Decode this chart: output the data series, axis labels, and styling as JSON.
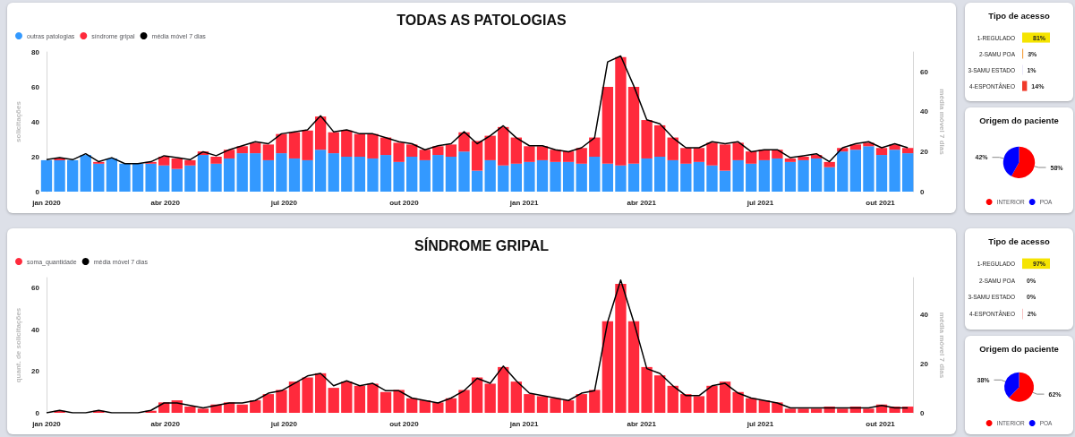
{
  "chart_data": [
    {
      "type": "bar",
      "title": "TODAS AS PATOLOGIAS",
      "ylabel": "solicitações",
      "y2label": "média móvel 7 dias",
      "stacked": true,
      "legend": "top left",
      "x": [
        "2020-01-01",
        "2020-01-11",
        "2020-01-21",
        "2020-01-31",
        "2020-02-10",
        "2020-02-20",
        "2020-03-01",
        "2020-03-11",
        "2020-03-21",
        "2020-03-31",
        "2020-04-10",
        "2020-04-20",
        "2020-04-30",
        "2020-05-10",
        "2020-05-20",
        "2020-05-30",
        "2020-06-09",
        "2020-06-19",
        "2020-06-29",
        "2020-07-09",
        "2020-07-19",
        "2020-07-29",
        "2020-08-08",
        "2020-08-18",
        "2020-08-28",
        "2020-09-07",
        "2020-09-17",
        "2020-09-27",
        "2020-10-07",
        "2020-10-17",
        "2020-10-27",
        "2020-11-06",
        "2020-11-16",
        "2020-11-26",
        "2020-12-06",
        "2020-12-16",
        "2020-12-26",
        "2021-01-05",
        "2021-01-15",
        "2021-01-25",
        "2021-02-04",
        "2021-02-14",
        "2021-02-24",
        "2021-03-06",
        "2021-03-16",
        "2021-03-26",
        "2021-04-05",
        "2021-04-15",
        "2021-04-25",
        "2021-05-05",
        "2021-05-15",
        "2021-05-25",
        "2021-06-04",
        "2021-06-14",
        "2021-06-24",
        "2021-07-04",
        "2021-07-14",
        "2021-07-24",
        "2021-08-03",
        "2021-08-13",
        "2021-08-23",
        "2021-09-02",
        "2021-09-12",
        "2021-09-22",
        "2021-10-02",
        "2021-10-12",
        "2021-10-22"
      ],
      "xlim": [
        "2020-01-01",
        "2021-10-26"
      ],
      "xticks": [
        {
          "value": "2020-01-01",
          "label": "jan 2020"
        },
        {
          "value": "2020-04-01",
          "label": "abr 2020"
        },
        {
          "value": "2020-07-01",
          "label": "jul 2020"
        },
        {
          "value": "2020-10-01",
          "label": "out 2020"
        },
        {
          "value": "2021-01-01",
          "label": "jan 2021"
        },
        {
          "value": "2021-04-01",
          "label": "abr 2021"
        },
        {
          "value": "2021-07-01",
          "label": "jul 2021"
        },
        {
          "value": "2021-10-01",
          "label": "out 2021"
        }
      ],
      "ylim": [
        0,
        80
      ],
      "yticks": [
        0,
        20,
        40,
        60,
        80
      ],
      "y2lim": [
        0,
        70
      ],
      "y2ticks": [
        0,
        20,
        40,
        60
      ],
      "series": [
        {
          "name": "outras patologias",
          "color": "#3399ff",
          "values": [
            18,
            18,
            18,
            21,
            16,
            19,
            16,
            16,
            16,
            15,
            13,
            15,
            21,
            16,
            19,
            22,
            22,
            18,
            22,
            19,
            18,
            24,
            22,
            20,
            20,
            19,
            21,
            17,
            20,
            18,
            21,
            20,
            23,
            12,
            18,
            15,
            16,
            17,
            18,
            17,
            17,
            16,
            20,
            16,
            15,
            16,
            19,
            20,
            18,
            16,
            17,
            15,
            12,
            18,
            16,
            18,
            19,
            17,
            18,
            19,
            14,
            23,
            24,
            26,
            21,
            24,
            22
          ]
        },
        {
          "name": "síndrome gripal",
          "color": "#ff2a3c",
          "values": [
            0,
            1,
            0,
            0,
            1,
            0,
            0,
            0,
            1,
            5,
            6,
            3,
            2,
            4,
            5,
            4,
            6,
            9,
            11,
            15,
            17,
            19,
            12,
            15,
            13,
            14,
            10,
            11,
            7,
            6,
            5,
            7,
            11,
            17,
            14,
            22,
            15,
            9,
            8,
            7,
            6,
            9,
            11,
            44,
            62,
            44,
            22,
            18,
            13,
            9,
            8,
            13,
            15,
            10,
            7,
            6,
            5,
            2,
            2,
            2,
            3,
            2,
            3,
            2,
            4,
            3,
            3
          ]
        },
        {
          "name": "média móvel 7 dias",
          "type": "line",
          "axis": "y2",
          "color": "#000000",
          "values": [
            16,
            17,
            16,
            19,
            15,
            17,
            14,
            14,
            15,
            18,
            17,
            16,
            20,
            18,
            21,
            23,
            25,
            24,
            29,
            30,
            31,
            38,
            30,
            31,
            29,
            29,
            27,
            25,
            24,
            21,
            23,
            24,
            30,
            24,
            28,
            33,
            27,
            23,
            23,
            21,
            20,
            22,
            27,
            65,
            68,
            53,
            36,
            34,
            27,
            22,
            22,
            25,
            24,
            25,
            20,
            21,
            21,
            17,
            18,
            19,
            15,
            22,
            24,
            25,
            22,
            24,
            22
          ]
        }
      ]
    },
    {
      "type": "bar",
      "orientation": "horizontal",
      "title": "Tipo de acesso",
      "categories": [
        "1-REGULADO",
        "2-SAMU POA",
        "3-SAMU ESTADO",
        "4-ESPONTÂNEO"
      ],
      "values": [
        81,
        3,
        1,
        14
      ],
      "value_labels": [
        "81%",
        "3%",
        "1%",
        "14%"
      ],
      "colors": [
        "#f5e400",
        "#f5a040",
        "#c8c0f0",
        "#f03a2a"
      ]
    },
    {
      "type": "pie",
      "title": "Origem do paciente",
      "legend": "bottom",
      "categories": [
        "INTERIOR",
        "POA"
      ],
      "values": [
        58,
        42
      ],
      "value_labels": [
        "58%",
        "42%"
      ],
      "colors": [
        "#ff0000",
        "#0000ff"
      ]
    },
    {
      "type": "bar",
      "title": "SÍNDROME GRIPAL",
      "ylabel": "quant. de solicitações",
      "y2label": "média móvel 7 dias",
      "legend": "top left",
      "x": [
        "2020-01-01",
        "2020-01-11",
        "2020-01-21",
        "2020-01-31",
        "2020-02-10",
        "2020-02-20",
        "2020-03-01",
        "2020-03-11",
        "2020-03-21",
        "2020-03-31",
        "2020-04-10",
        "2020-04-20",
        "2020-04-30",
        "2020-05-10",
        "2020-05-20",
        "2020-05-30",
        "2020-06-09",
        "2020-06-19",
        "2020-06-29",
        "2020-07-09",
        "2020-07-19",
        "2020-07-29",
        "2020-08-08",
        "2020-08-18",
        "2020-08-28",
        "2020-09-07",
        "2020-09-17",
        "2020-09-27",
        "2020-10-07",
        "2020-10-17",
        "2020-10-27",
        "2020-11-06",
        "2020-11-16",
        "2020-11-26",
        "2020-12-06",
        "2020-12-16",
        "2020-12-26",
        "2021-01-05",
        "2021-01-15",
        "2021-01-25",
        "2021-02-04",
        "2021-02-14",
        "2021-02-24",
        "2021-03-06",
        "2021-03-16",
        "2021-03-26",
        "2021-04-05",
        "2021-04-15",
        "2021-04-25",
        "2021-05-05",
        "2021-05-15",
        "2021-05-25",
        "2021-06-04",
        "2021-06-14",
        "2021-06-24",
        "2021-07-04",
        "2021-07-14",
        "2021-07-24",
        "2021-08-03",
        "2021-08-13",
        "2021-08-23",
        "2021-09-02",
        "2021-09-12",
        "2021-09-22",
        "2021-10-02",
        "2021-10-12",
        "2021-10-22"
      ],
      "xlim": [
        "2020-01-01",
        "2021-10-26"
      ],
      "xticks": [
        {
          "value": "2020-01-01",
          "label": "jan 2020"
        },
        {
          "value": "2020-04-01",
          "label": "abr 2020"
        },
        {
          "value": "2020-07-01",
          "label": "jul 2020"
        },
        {
          "value": "2020-10-01",
          "label": "out 2020"
        },
        {
          "value": "2021-01-01",
          "label": "jan 2021"
        },
        {
          "value": "2021-04-01",
          "label": "abr 2021"
        },
        {
          "value": "2021-07-01",
          "label": "jul 2021"
        },
        {
          "value": "2021-10-01",
          "label": "out 2021"
        }
      ],
      "ylim": [
        0,
        65
      ],
      "yticks": [
        0,
        20,
        40,
        60
      ],
      "y2lim": [
        0,
        55
      ],
      "y2ticks": [
        0,
        20,
        40
      ],
      "series": [
        {
          "name": "soma_quantidade",
          "color": "#ff2a3c",
          "values": [
            0,
            1,
            0,
            0,
            1,
            0,
            0,
            0,
            1,
            5,
            6,
            3,
            2,
            4,
            5,
            4,
            6,
            9,
            11,
            15,
            17,
            19,
            12,
            15,
            13,
            14,
            10,
            11,
            7,
            6,
            5,
            7,
            11,
            17,
            14,
            22,
            15,
            9,
            8,
            7,
            6,
            9,
            11,
            44,
            62,
            44,
            22,
            18,
            13,
            9,
            8,
            13,
            15,
            10,
            7,
            6,
            5,
            2,
            2,
            2,
            3,
            2,
            3,
            2,
            4,
            3,
            3
          ]
        },
        {
          "name": "média móvel 7 dias",
          "type": "line",
          "axis": "y2",
          "color": "#000000",
          "values": [
            0,
            1,
            0,
            0,
            1,
            0,
            0,
            0,
            1,
            4,
            4,
            3,
            2,
            3,
            4,
            4,
            5,
            8,
            9,
            12,
            15,
            16,
            11,
            13,
            11,
            12,
            9,
            9,
            6,
            5,
            4,
            6,
            9,
            14,
            12,
            19,
            13,
            8,
            7,
            6,
            5,
            8,
            9,
            37,
            54,
            37,
            18,
            16,
            11,
            7,
            7,
            11,
            12,
            8,
            6,
            5,
            4,
            2,
            2,
            2,
            2,
            2,
            2,
            2,
            3,
            2,
            2
          ]
        }
      ]
    },
    {
      "type": "bar",
      "orientation": "horizontal",
      "title": "Tipo de acesso",
      "categories": [
        "1-REGULADO",
        "2-SAMU POA",
        "3-SAMU ESTADO",
        "4-ESPONTÂNEO"
      ],
      "values": [
        97,
        0,
        0,
        2
      ],
      "value_labels": [
        "97%",
        "0%",
        "0%",
        "2%"
      ],
      "colors": [
        "#f5e400",
        "#f8c8a0",
        "#d8d0f8",
        "#f4a0a0"
      ]
    },
    {
      "type": "pie",
      "title": "Origem do paciente",
      "legend": "bottom",
      "categories": [
        "INTERIOR",
        "POA"
      ],
      "values": [
        62,
        38
      ],
      "value_labels": [
        "62%",
        "38%"
      ],
      "colors": [
        "#ff0000",
        "#0000ff"
      ]
    }
  ]
}
